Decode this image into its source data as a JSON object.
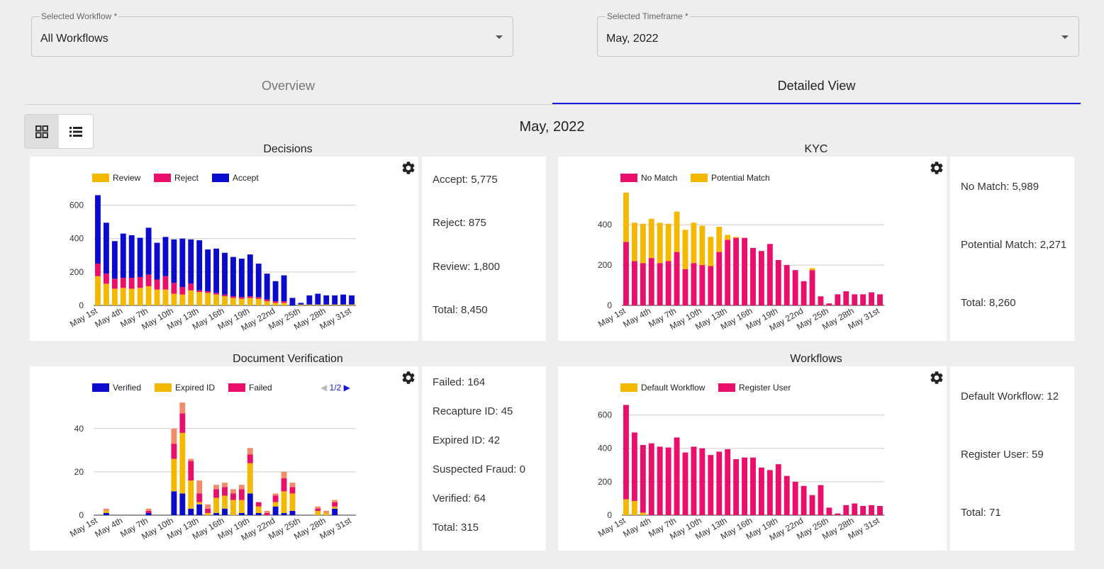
{
  "filters": {
    "workflow": {
      "label": "Selected Workflow *",
      "value": "All Workflows"
    },
    "timeframe": {
      "label": "Selected Timeframe *",
      "value": "May, 2022"
    }
  },
  "tabs": {
    "overview": "Overview",
    "detailed": "Detailed View"
  },
  "page_title": "May, 2022",
  "colors": {
    "review": "#f5b800",
    "reject": "#ea0f6b",
    "accept": "#0b0bce",
    "failed_light": "#f28b6a",
    "grid": "#cccccc"
  },
  "decisions": {
    "title": "Decisions",
    "legend": [
      "Review",
      "Reject",
      "Accept"
    ],
    "stats": [
      "Accept: 5,775",
      "Reject: 875",
      "Review: 1,800",
      "Total: 8,450"
    ]
  },
  "kyc": {
    "title": "KYC",
    "legend": [
      "No Match",
      "Potential Match"
    ],
    "stats": [
      "No Match: 5,989",
      "Potential Match: 2,271",
      "Total: 8,260"
    ]
  },
  "docver": {
    "title": "Document Verification",
    "legend": [
      "Verified",
      "Expired ID",
      "Failed"
    ],
    "pager": "1/2",
    "stats": [
      "Failed: 164",
      "Recapture ID: 45",
      "Expired ID: 42",
      "Suspected Fraud: 0",
      "Verified: 64",
      "Total: 315"
    ]
  },
  "workflows": {
    "title": "Workflows",
    "legend": [
      "Default Workflow",
      "Register User"
    ],
    "stats": [
      "Default Workflow: 12",
      "Register User: 59",
      "Total: 71"
    ]
  },
  "chart_data": [
    {
      "type": "bar",
      "stacked": true,
      "title": "Decisions",
      "categories": [
        "May 1st",
        "May 2nd",
        "May 3rd",
        "May 4th",
        "May 5th",
        "May 6th",
        "May 7th",
        "May 8th",
        "May 9th",
        "May 10th",
        "May 11th",
        "May 12th",
        "May 13th",
        "May 14th",
        "May 15th",
        "May 16th",
        "May 17th",
        "May 18th",
        "May 19th",
        "May 20th",
        "May 21st",
        "May 22nd",
        "May 23rd",
        "May 24th",
        "May 25th",
        "May 26th",
        "May 27th",
        "May 28th",
        "May 29th",
        "May 30th",
        "May 31st"
      ],
      "tick_labels": [
        "May 1st",
        "May 4th",
        "May 7th",
        "May 10th",
        "May 13th",
        "May 16th",
        "May 19th",
        "May 22nd",
        "May 25th",
        "May 28th",
        "May 31st"
      ],
      "ylim": [
        0,
        700
      ],
      "yticks": [
        0,
        200,
        400,
        600
      ],
      "series": [
        {
          "name": "Review",
          "color": "#f5b800",
          "values": [
            175,
            130,
            100,
            105,
            100,
            105,
            115,
            95,
            95,
            70,
            65,
            90,
            80,
            75,
            65,
            55,
            45,
            40,
            45,
            40,
            25,
            15,
            15,
            0,
            5,
            5,
            5,
            5,
            5,
            5,
            5
          ]
        },
        {
          "name": "Reject",
          "color": "#ea0f6b",
          "values": [
            75,
            60,
            60,
            60,
            65,
            65,
            70,
            60,
            80,
            65,
            45,
            40,
            10,
            10,
            10,
            10,
            10,
            10,
            10,
            10,
            10,
            10,
            10,
            0,
            0,
            0,
            0,
            0,
            0,
            0,
            0
          ]
        },
        {
          "name": "Accept",
          "color": "#0b0bce",
          "values": [
            410,
            305,
            225,
            265,
            255,
            235,
            280,
            220,
            235,
            260,
            290,
            265,
            300,
            250,
            265,
            250,
            235,
            230,
            250,
            200,
            155,
            120,
            155,
            45,
            10,
            55,
            65,
            55,
            55,
            60,
            55
          ]
        }
      ]
    },
    {
      "type": "bar",
      "stacked": true,
      "title": "KYC",
      "categories": [
        "May 1st",
        "May 2nd",
        "May 3rd",
        "May 4th",
        "May 5th",
        "May 6th",
        "May 7th",
        "May 8th",
        "May 9th",
        "May 10th",
        "May 11th",
        "May 12th",
        "May 13th",
        "May 14th",
        "May 15th",
        "May 16th",
        "May 17th",
        "May 18th",
        "May 19th",
        "May 20th",
        "May 21st",
        "May 22nd",
        "May 23rd",
        "May 24th",
        "May 25th",
        "May 26th",
        "May 27th",
        "May 28th",
        "May 29th",
        "May 30th",
        "May 31st"
      ],
      "tick_labels": [
        "May 1st",
        "May 4th",
        "May 7th",
        "May 10th",
        "May 13th",
        "May 16th",
        "May 19th",
        "May 22nd",
        "May 25th",
        "May 28th",
        "May 31st"
      ],
      "ylim": [
        0,
        580
      ],
      "yticks": [
        0,
        200,
        400
      ],
      "series": [
        {
          "name": "No Match",
          "color": "#ea0f6b",
          "values": [
            315,
            220,
            210,
            235,
            210,
            220,
            265,
            180,
            210,
            200,
            195,
            265,
            325,
            335,
            335,
            285,
            270,
            305,
            225,
            200,
            175,
            120,
            175,
            45,
            10,
            55,
            70,
            55,
            55,
            65,
            55
          ]
        },
        {
          "name": "Potential Match",
          "color": "#f5b800",
          "values": [
            245,
            190,
            195,
            195,
            200,
            185,
            200,
            195,
            200,
            195,
            145,
            125,
            25,
            5,
            0,
            0,
            0,
            0,
            0,
            0,
            0,
            0,
            10,
            0,
            0,
            0,
            0,
            0,
            0,
            0,
            0
          ]
        }
      ]
    },
    {
      "type": "bar",
      "stacked": true,
      "title": "Document Verification",
      "categories": [
        "May 1st",
        "May 2nd",
        "May 3rd",
        "May 4th",
        "May 5th",
        "May 6th",
        "May 7th",
        "May 8th",
        "May 9th",
        "May 10th",
        "May 11th",
        "May 12th",
        "May 13th",
        "May 14th",
        "May 15th",
        "May 16th",
        "May 17th",
        "May 18th",
        "May 19th",
        "May 20th",
        "May 21st",
        "May 22nd",
        "May 23rd",
        "May 24th",
        "May 25th",
        "May 26th",
        "May 27th",
        "May 28th",
        "May 29th",
        "May 30th",
        "May 31st"
      ],
      "tick_labels": [
        "May 1st",
        "May 4th",
        "May 7th",
        "May 10th",
        "May 13th",
        "May 16th",
        "May 19th",
        "May 22nd",
        "May 25th",
        "May 28th",
        "May 31st"
      ],
      "ylim": [
        0,
        54
      ],
      "yticks": [
        0,
        20,
        40
      ],
      "series": [
        {
          "name": "Verified",
          "color": "#0b0bce",
          "values": [
            0,
            1,
            0,
            0,
            0,
            0,
            1,
            0,
            0,
            11,
            10,
            3,
            5,
            0,
            1,
            3,
            0,
            1,
            10,
            1,
            0,
            4,
            1,
            2,
            0,
            0,
            0,
            0,
            3,
            0,
            0
          ]
        },
        {
          "name": "Expired ID",
          "color": "#f5b800",
          "values": [
            0,
            1,
            0,
            0,
            0,
            0,
            0,
            0,
            0,
            15,
            28,
            13,
            1,
            1,
            7,
            6,
            7,
            6,
            14,
            3,
            0,
            2,
            10,
            8,
            0,
            0,
            2,
            1,
            1,
            0,
            0
          ]
        },
        {
          "name": "Failed",
          "color": "#ea0f6b",
          "values": [
            0,
            0,
            0,
            0,
            0,
            0,
            1,
            0,
            0,
            7,
            9,
            9,
            4,
            2,
            4,
            4,
            3,
            5,
            4,
            2,
            1,
            3,
            6,
            3,
            0,
            0,
            1,
            0,
            2,
            0,
            0
          ]
        },
        {
          "name": "Recapture ID",
          "color": "#f28b6a",
          "values": [
            0,
            1,
            0,
            0,
            0,
            0,
            1,
            0,
            0,
            7,
            5,
            1,
            6,
            2,
            2,
            2,
            2,
            2,
            3,
            0,
            1,
            1,
            3,
            2,
            0,
            0,
            1,
            1,
            1,
            0,
            0
          ]
        }
      ]
    },
    {
      "type": "bar",
      "stacked": true,
      "title": "Workflows",
      "categories": [
        "May 1st",
        "May 2nd",
        "May 3rd",
        "May 4th",
        "May 5th",
        "May 6th",
        "May 7th",
        "May 8th",
        "May 9th",
        "May 10th",
        "May 11th",
        "May 12th",
        "May 13th",
        "May 14th",
        "May 15th",
        "May 16th",
        "May 17th",
        "May 18th",
        "May 19th",
        "May 20th",
        "May 21st",
        "May 22nd",
        "May 23rd",
        "May 24th",
        "May 25th",
        "May 26th",
        "May 27th",
        "May 28th",
        "May 29th",
        "May 30th",
        "May 31st"
      ],
      "tick_labels": [
        "May 1st",
        "May 4th",
        "May 7th",
        "May 10th",
        "May 13th",
        "May 16th",
        "May 19th",
        "May 22nd",
        "May 25th",
        "May 28th",
        "May 31st"
      ],
      "ylim": [
        0,
        700
      ],
      "yticks": [
        0,
        200,
        400,
        600
      ],
      "series": [
        {
          "name": "Default Workflow",
          "color": "#f5b800",
          "values": [
            95,
            85,
            15,
            0,
            0,
            0,
            0,
            0,
            0,
            0,
            0,
            0,
            0,
            0,
            0,
            0,
            0,
            0,
            0,
            0,
            0,
            0,
            0,
            0,
            0,
            0,
            0,
            0,
            0,
            0,
            0
          ]
        },
        {
          "name": "Register User",
          "color": "#ea0f6b",
          "values": [
            565,
            410,
            405,
            430,
            410,
            405,
            465,
            375,
            410,
            400,
            360,
            380,
            395,
            335,
            345,
            345,
            285,
            270,
            305,
            235,
            200,
            175,
            120,
            180,
            45,
            10,
            60,
            70,
            55,
            60,
            55
          ]
        }
      ]
    }
  ]
}
